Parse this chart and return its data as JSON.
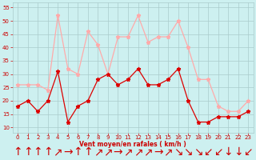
{
  "xlabel": "Vent moyen/en rafales ( km/h )",
  "x_values": [
    0,
    1,
    2,
    3,
    4,
    5,
    6,
    7,
    8,
    9,
    10,
    11,
    12,
    13,
    14,
    15,
    16,
    17,
    18,
    19,
    20,
    21,
    22,
    23
  ],
  "wind_mean": [
    18,
    20,
    16,
    20,
    31,
    12,
    18,
    20,
    28,
    30,
    26,
    28,
    32,
    26,
    26,
    28,
    32,
    20,
    12,
    12,
    14,
    14,
    14,
    16
  ],
  "wind_gust": [
    26,
    26,
    26,
    24,
    52,
    32,
    30,
    46,
    41,
    30,
    44,
    44,
    52,
    42,
    44,
    44,
    50,
    40,
    28,
    28,
    18,
    16,
    16,
    20
  ],
  "background_color": "#cdf0f0",
  "grid_color": "#aacccc",
  "line_mean_color": "#dd0000",
  "line_gust_color": "#ffaaaa",
  "tick_label_color": "#cc0000",
  "axis_label_color": "#cc0000",
  "ylim": [
    8,
    57
  ],
  "yticks": [
    10,
    15,
    20,
    25,
    30,
    35,
    40,
    45,
    50,
    55
  ],
  "xticks": [
    0,
    1,
    2,
    3,
    4,
    5,
    6,
    7,
    8,
    9,
    10,
    11,
    12,
    13,
    14,
    15,
    16,
    17,
    18,
    19,
    20,
    21,
    22,
    23
  ],
  "arrow_symbols": [
    "↑",
    "↑",
    "↑",
    "↑",
    "↗",
    "→",
    "↑",
    "↑",
    "↗",
    "↗",
    "→",
    "↗",
    "↗",
    "↗",
    "→",
    "↗",
    "↘",
    "↘",
    "↘",
    "↙",
    "↙",
    "↓",
    "↓",
    "↙"
  ]
}
